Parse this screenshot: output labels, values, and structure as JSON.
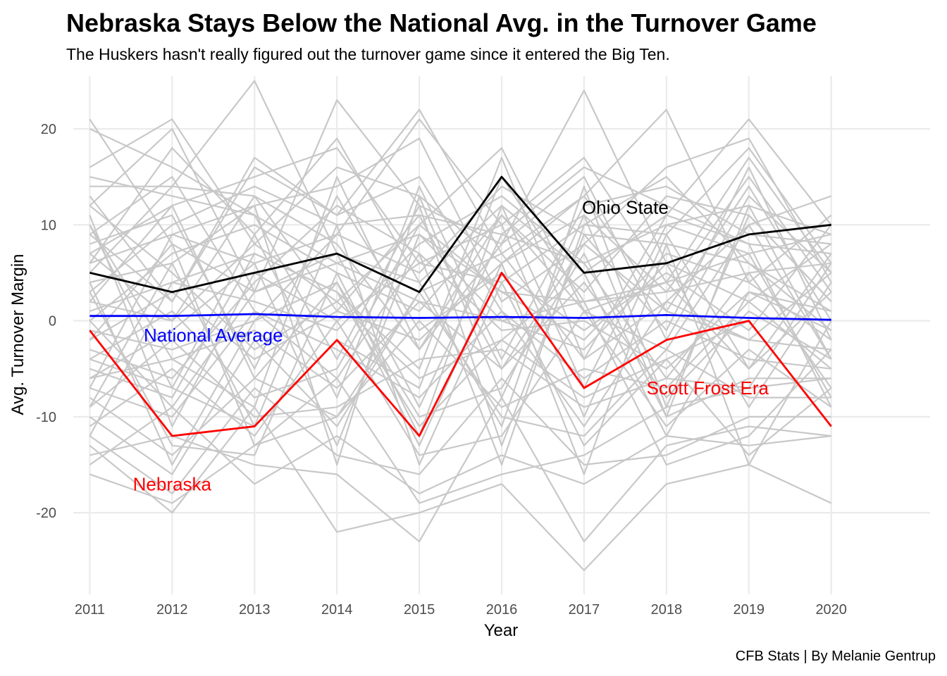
{
  "chart_data": {
    "type": "line",
    "title": "Nebraska Stays Below the National Avg. in the Turnover Game",
    "subtitle": "The Huskers hasn't really figured out the turnover game since it entered the Big Ten.",
    "caption": "CFB Stats | By Melanie Gentrup",
    "xlabel": "Year",
    "ylabel": "Avg. Turnover Margin",
    "x": [
      2011,
      2012,
      2013,
      2014,
      2015,
      2016,
      2017,
      2018,
      2019,
      2020
    ],
    "xlim": [
      2010.8,
      2021.2
    ],
    "ylim": [
      -28.5,
      25.5
    ],
    "y_ticks": [
      -20,
      -10,
      0,
      10,
      20
    ],
    "grid": true,
    "legend": "none",
    "colors": {
      "background_lines": "#c8c8c8",
      "grid": "#ebebeb",
      "nebraska": "#ff0000",
      "national_average": "#0000ff",
      "ohio_state": "#000000"
    },
    "series": [
      {
        "name": "Nebraska",
        "color": "#ff0000",
        "values": [
          -1,
          -12,
          -11,
          -2,
          -12,
          5,
          -7,
          -2,
          0,
          -11
        ]
      },
      {
        "name": "National Average",
        "color": "#0000ff",
        "values": [
          0.5,
          0.5,
          0.7,
          0.4,
          0.3,
          0.4,
          0.3,
          0.6,
          0.3,
          0.1
        ]
      },
      {
        "name": "Ohio State",
        "color": "#000000",
        "values": [
          5,
          3,
          5,
          7,
          3,
          15,
          5,
          6,
          9,
          10
        ]
      }
    ],
    "annotations": [
      {
        "text": "Ohio State",
        "x": 2017.5,
        "y": 11.8,
        "color": "#000000"
      },
      {
        "text": "National Average",
        "x": 2012.5,
        "y": -1.5,
        "color": "#0000ff"
      },
      {
        "text": "Scott Frost Era",
        "x": 2018.5,
        "y": -7,
        "color": "#ff0000"
      },
      {
        "text": "Nebraska",
        "x": 2012,
        "y": -17,
        "color": "#ff0000"
      }
    ],
    "background_series": [
      [
        21,
        8,
        3,
        6,
        2,
        0,
        2,
        3,
        5,
        6
      ],
      [
        20,
        16,
        11,
        6,
        9,
        3,
        2,
        4,
        7,
        9
      ],
      [
        16,
        21,
        8,
        2,
        10,
        18,
        1,
        -3,
        10,
        13
      ],
      [
        14,
        14,
        25,
        7,
        4,
        12,
        5,
        11,
        21,
        10
      ],
      [
        12,
        20,
        3,
        23,
        12,
        8,
        24,
        6,
        2,
        8
      ],
      [
        9,
        2,
        17,
        11,
        22,
        7,
        13,
        22,
        4,
        11
      ],
      [
        7,
        12,
        15,
        18,
        6,
        4,
        10,
        9,
        18,
        6
      ],
      [
        6,
        9,
        6,
        9,
        21,
        10,
        17,
        4,
        17,
        5
      ],
      [
        4,
        6,
        12,
        14,
        19,
        2,
        8,
        16,
        19,
        4
      ],
      [
        3,
        10,
        14,
        10,
        11,
        9,
        16,
        12,
        8,
        7
      ],
      [
        2,
        0,
        8,
        16,
        13,
        6,
        11,
        3,
        15,
        3
      ],
      [
        1,
        4,
        2,
        -1,
        8,
        13,
        6,
        10,
        12,
        9
      ],
      [
        0,
        7,
        10,
        5,
        1,
        11,
        3,
        13,
        11,
        2
      ],
      [
        -1,
        -3,
        0,
        9,
        5,
        14,
        9,
        8,
        6,
        1
      ],
      [
        -2,
        3,
        -4,
        1,
        -2,
        6,
        13,
        1,
        14,
        0
      ],
      [
        -3,
        -6,
        4,
        12,
        7,
        -1,
        0,
        -5,
        3,
        -1
      ],
      [
        -4,
        1,
        -8,
        -5,
        10,
        3,
        -2,
        7,
        4,
        -2
      ],
      [
        -5,
        -8,
        7,
        3,
        -5,
        17,
        -4,
        2,
        -2,
        -3
      ],
      [
        -6,
        -4,
        -1,
        -7,
        2,
        -5,
        4,
        -8,
        1,
        -4
      ],
      [
        -7,
        -10,
        1,
        -3,
        -8,
        1,
        -6,
        0,
        -4,
        -5
      ],
      [
        -8,
        -14,
        -6,
        4,
        -10,
        -7,
        7,
        -10,
        -6,
        -6
      ],
      [
        -9,
        -2,
        -10,
        -9,
        -4,
        -3,
        -9,
        -6,
        5,
        -7
      ],
      [
        -10,
        -16,
        -2,
        -11,
        3,
        -10,
        -12,
        -3,
        -8,
        -8
      ],
      [
        -11,
        -5,
        -12,
        0,
        -14,
        -12,
        1,
        -11,
        -3,
        -9
      ],
      [
        -12,
        -18,
        -7,
        -14,
        -16,
        -6,
        -15,
        -14,
        -10,
        -10
      ],
      [
        -13,
        -20,
        -9,
        -22,
        -20,
        -17,
        -26,
        -17,
        -15,
        -19
      ],
      [
        -14,
        -12,
        -15,
        -16,
        -23,
        -8,
        -23,
        -13,
        -11,
        -12
      ],
      [
        -15,
        -9,
        -17,
        -12,
        -18,
        -14,
        -17,
        -12,
        -13,
        -12
      ],
      [
        -16,
        -19,
        -13,
        -6,
        -19,
        -16,
        -14,
        -9,
        -7,
        -6
      ],
      [
        12,
        5,
        -3,
        2,
        -6,
        -2,
        -8,
        -4,
        0,
        -11
      ],
      [
        10,
        -7,
        9,
        -8,
        14,
        -4,
        12,
        14,
        9,
        8
      ],
      [
        8,
        11,
        -5,
        13,
        -1,
        5,
        -1,
        5,
        -1,
        10
      ],
      [
        5,
        14,
        13,
        8,
        -3,
        8,
        15,
        -2,
        13,
        5
      ],
      [
        -2,
        8,
        -13,
        -10,
        0,
        -9,
        -5,
        -7,
        2,
        -5
      ],
      [
        11,
        -11,
        5,
        0,
        6,
        10,
        -10,
        9,
        -5,
        3
      ],
      [
        15,
        13,
        11,
        -4,
        12,
        -13,
        9,
        -1,
        16,
        -2
      ],
      [
        -6,
        -1,
        6,
        -13,
        9,
        0,
        -3,
        6,
        -9,
        4
      ],
      [
        3,
        -13,
        -14,
        5,
        -12,
        12,
        -7,
        10,
        7,
        -8
      ],
      [
        6,
        18,
        9,
        19,
        4,
        -11,
        14,
        -9,
        11,
        2
      ],
      [
        -9,
        6,
        -11,
        -2,
        -7,
        15,
        2,
        -15,
        -12,
        -3
      ],
      [
        13,
        2,
        16,
        11,
        15,
        1,
        -11,
        2,
        10,
        -4
      ],
      [
        0,
        -9,
        3,
        7,
        -9,
        9,
        6,
        -6,
        -7,
        6
      ],
      [
        9,
        15,
        1,
        -6,
        7,
        -15,
        10,
        15,
        6,
        -1
      ],
      [
        -4,
        -7,
        -11,
        10,
        -15,
        4,
        -13,
        -4,
        -14,
        -7
      ],
      [
        7,
        0,
        13,
        1,
        11,
        -5,
        8,
        1,
        -2,
        5
      ],
      [
        2,
        12,
        -6,
        -10,
        3,
        7,
        -4,
        11,
        8,
        -9
      ],
      [
        -12,
        4,
        7,
        3,
        -11,
        -2,
        5,
        -12,
        3,
        1
      ],
      [
        10,
        -4,
        -9,
        15,
        -3,
        11,
        1,
        4,
        -5,
        7
      ],
      [
        -7,
        9,
        12,
        -15,
        13,
        -8,
        11,
        -10,
        12,
        -4
      ],
      [
        4,
        -15,
        0,
        4,
        -13,
        6,
        -16,
        8,
        -15,
        0
      ]
    ]
  }
}
